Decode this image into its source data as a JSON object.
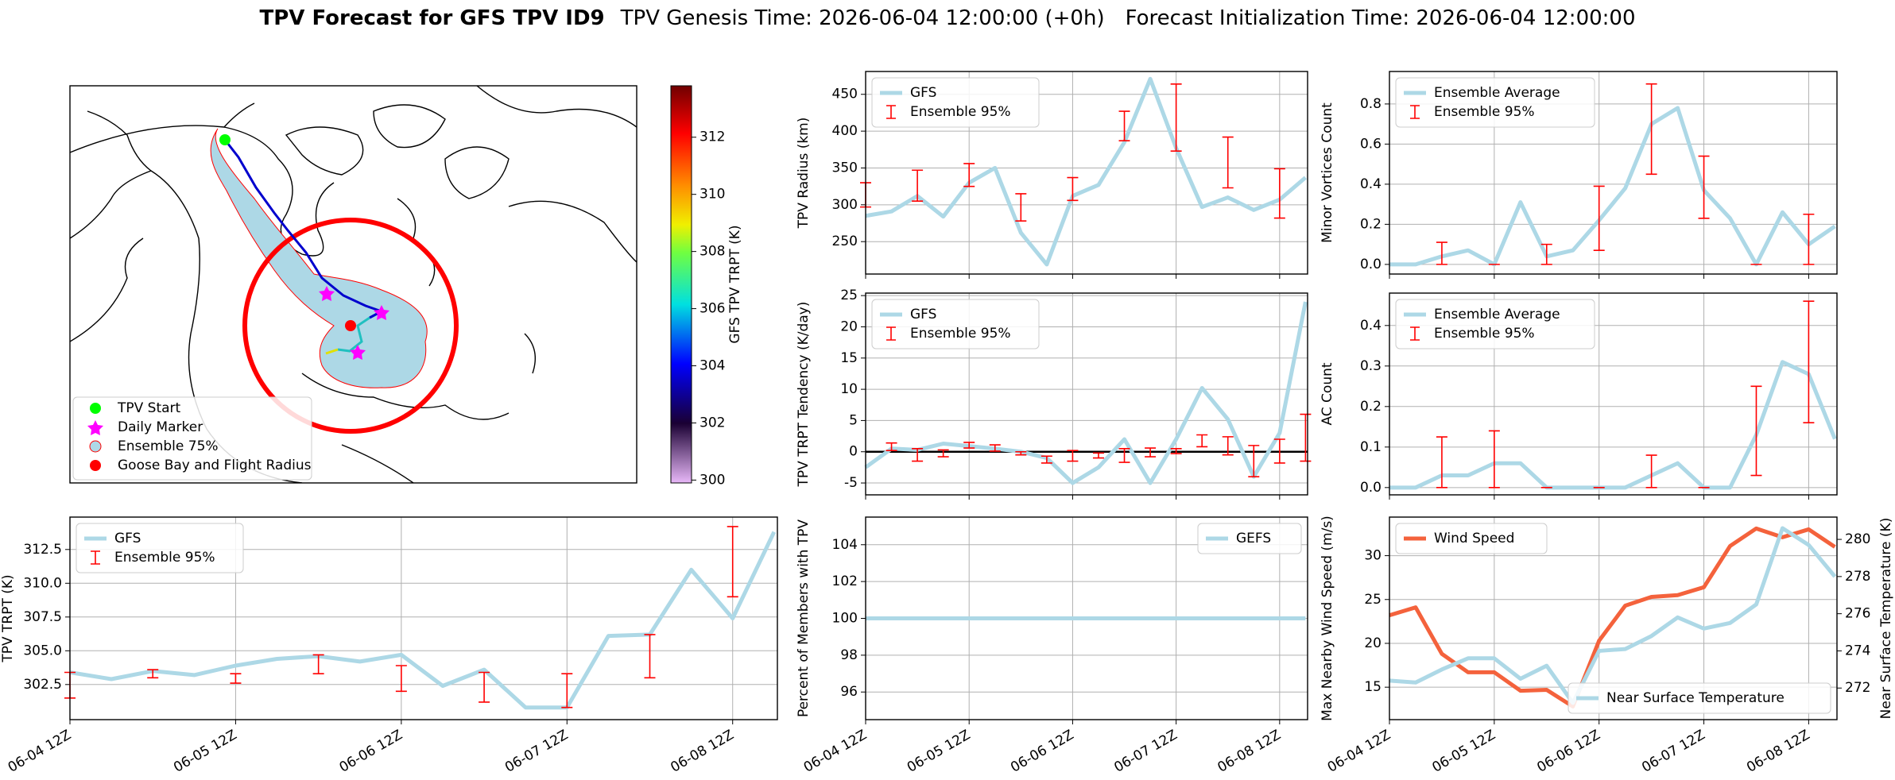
{
  "title": {
    "main": "TPV Forecast for GFS TPV ID9",
    "genesis": "TPV Genesis Time: 2026-06-04 12:00:00 (+0h)",
    "init": "Forecast Initialization Time: 2026-06-04 12:00:00"
  },
  "chart_data": [
    {
      "type": "map",
      "legend": [
        "TPV Start",
        "Daily Marker",
        "Ensemble 75%",
        "Goose Bay and Flight Radius"
      ],
      "colorbar": {
        "label": "GFS TPV TRPT (K)",
        "ylim": [
          299.9,
          313.8
        ],
        "yticks": [
          300,
          302,
          304,
          306,
          308,
          310,
          312
        ]
      }
    },
    {
      "type": "line",
      "ylabel": "TPV TRPT (K)",
      "grid": true,
      "legend": "upper left",
      "x": [
        "06-04 12Z",
        "06-04 18Z",
        "06-05 00Z",
        "06-05 06Z",
        "06-05 12Z",
        "06-05 18Z",
        "06-06 00Z",
        "06-06 06Z",
        "06-06 12Z",
        "06-06 18Z",
        "06-07 00Z",
        "06-07 06Z",
        "06-07 12Z",
        "06-07 18Z",
        "06-08 00Z",
        "06-08 06Z",
        "06-08 12Z",
        "06-08 18Z"
      ],
      "xticks": [
        "06-04 12Z",
        "06-05 12Z",
        "06-06 12Z",
        "06-07 12Z",
        "06-08 12Z"
      ],
      "ylim": [
        299.9,
        314.9
      ],
      "yticks": [
        302.5,
        {
          "value": 305,
          "label": "305.0"
        },
        307.5,
        {
          "value": 310,
          "label": "310.0"
        },
        312.5
      ],
      "series": [
        {
          "name": "GFS",
          "color": "#add8e6",
          "values": [
            303.4,
            302.9,
            303.5,
            303.2,
            303.9,
            304.4,
            304.6,
            304.2,
            304.7,
            302.4,
            303.6,
            300.8,
            300.8,
            306.1,
            306.2,
            311.0,
            307.4,
            313.8
          ]
        },
        {
          "name": "Ensemble 95%",
          "color": "#ff0000",
          "low": [
            301.5,
            null,
            303.0,
            null,
            302.6,
            null,
            303.3,
            null,
            302.0,
            null,
            301.2,
            null,
            300.8,
            null,
            303.0,
            null,
            309.0,
            null
          ],
          "high": [
            303.4,
            null,
            303.6,
            null,
            303.3,
            null,
            304.7,
            null,
            303.9,
            null,
            303.4,
            null,
            303.3,
            null,
            306.2,
            null,
            314.2,
            null
          ]
        }
      ]
    },
    {
      "type": "line",
      "ylabel": "TPV Radius (km)",
      "grid": true,
      "legend": "upper left",
      "x": [
        "06-04 12Z",
        "06-04 18Z",
        "06-05 00Z",
        "06-05 06Z",
        "06-05 12Z",
        "06-05 18Z",
        "06-06 00Z",
        "06-06 06Z",
        "06-06 12Z",
        "06-06 18Z",
        "06-07 00Z",
        "06-07 06Z",
        "06-07 12Z",
        "06-07 18Z",
        "06-08 00Z",
        "06-08 06Z",
        "06-08 12Z",
        "06-08 18Z"
      ],
      "xticks": [
        "06-04 12Z",
        "06-05 12Z",
        "06-06 12Z",
        "06-07 12Z",
        "06-08 12Z"
      ],
      "ylim": [
        206,
        481
      ],
      "yticks": [
        250,
        300,
        350,
        400,
        450
      ],
      "series": [
        {
          "name": "GFS",
          "color": "#add8e6",
          "values": [
            285,
            291,
            312,
            284,
            330,
            350,
            262,
            219,
            312,
            327,
            385,
            471,
            377,
            297,
            310,
            293,
            307,
            337
          ]
        },
        {
          "name": "Ensemble 95%",
          "color": "#ff0000",
          "low": [
            297,
            null,
            305,
            null,
            325,
            null,
            278,
            null,
            306,
            null,
            387,
            null,
            373,
            null,
            323,
            null,
            282,
            null
          ],
          "high": [
            330,
            null,
            347,
            null,
            356,
            null,
            315,
            null,
            337,
            null,
            427,
            null,
            464,
            null,
            392,
            null,
            349,
            null
          ]
        }
      ]
    },
    {
      "type": "line",
      "ylabel": "TPV TRPT Tendency (K/day)",
      "grid": true,
      "legend": "upper left",
      "hline": 0,
      "x": [
        "06-04 12Z",
        "06-04 18Z",
        "06-05 00Z",
        "06-05 06Z",
        "06-05 12Z",
        "06-05 18Z",
        "06-06 00Z",
        "06-06 06Z",
        "06-06 12Z",
        "06-06 18Z",
        "06-07 00Z",
        "06-07 06Z",
        "06-07 12Z",
        "06-07 18Z",
        "06-08 00Z",
        "06-08 06Z",
        "06-08 12Z",
        "06-08 18Z"
      ],
      "xticks": [
        "06-04 12Z",
        "06-05 12Z",
        "06-06 12Z",
        "06-07 12Z",
        "06-08 12Z"
      ],
      "ylim": [
        -6.9,
        25.4
      ],
      "yticks": [
        -5,
        0,
        5,
        10,
        15,
        20,
        25
      ],
      "series": [
        {
          "name": "GFS",
          "color": "#add8e6",
          "values": [
            -2.5,
            0.5,
            0.3,
            1.3,
            0.9,
            0.5,
            0,
            -1,
            -5,
            -2.5,
            2,
            -5,
            2,
            10.2,
            5.2,
            -4,
            3,
            24
          ]
        },
        {
          "name": "Ensemble 95%",
          "color": "#ff0000",
          "low": [
            null,
            0.2,
            -1.5,
            -0.8,
            0.6,
            0.1,
            -0.5,
            -1.8,
            -1.5,
            -1,
            -1.7,
            -0.8,
            -0.3,
            0.8,
            -0.5,
            -4,
            -1.8,
            -1.5
          ],
          "high": [
            null,
            1.4,
            0.5,
            0.3,
            1.5,
            1.1,
            0,
            -0.7,
            0.2,
            -0.2,
            0.5,
            0.6,
            0.5,
            2.7,
            2.4,
            1,
            2,
            6
          ]
        }
      ]
    },
    {
      "type": "line",
      "ylabel": "Percent of Members with TPV",
      "grid": true,
      "legend": "upper right",
      "x": [
        "06-04 12Z",
        "06-04 18Z",
        "06-05 00Z",
        "06-05 06Z",
        "06-05 12Z",
        "06-05 18Z",
        "06-06 00Z",
        "06-06 06Z",
        "06-06 12Z",
        "06-06 18Z",
        "06-07 00Z",
        "06-07 06Z",
        "06-07 12Z",
        "06-07 18Z",
        "06-08 00Z",
        "06-08 06Z",
        "06-08 12Z",
        "06-08 18Z"
      ],
      "xticks": [
        "06-04 12Z",
        "06-05 12Z",
        "06-06 12Z",
        "06-07 12Z",
        "06-08 12Z"
      ],
      "ylim": [
        94.5,
        105.5
      ],
      "yticks": [
        96,
        98,
        100,
        102,
        104
      ],
      "series": [
        {
          "name": "GEFS",
          "color": "#add8e6",
          "values": [
            100,
            100,
            100,
            100,
            100,
            100,
            100,
            100,
            100,
            100,
            100,
            100,
            100,
            100,
            100,
            100,
            100,
            100
          ]
        }
      ]
    },
    {
      "type": "line",
      "ylabel": "Minor Vortices Count",
      "grid": true,
      "legend": "upper left",
      "x": [
        "06-04 12Z",
        "06-04 18Z",
        "06-05 00Z",
        "06-05 06Z",
        "06-05 12Z",
        "06-05 18Z",
        "06-06 00Z",
        "06-06 06Z",
        "06-06 12Z",
        "06-06 18Z",
        "06-07 00Z",
        "06-07 06Z",
        "06-07 12Z",
        "06-07 18Z",
        "06-08 00Z",
        "06-08 06Z",
        "06-08 12Z",
        "06-08 18Z"
      ],
      "xticks": [
        "06-04 12Z",
        "06-05 12Z",
        "06-06 12Z",
        "06-07 12Z",
        "06-08 12Z"
      ],
      "ylim": [
        -0.048,
        0.962
      ],
      "yticks": [
        {
          "value": 0,
          "label": "0.0"
        },
        0.2,
        0.4,
        0.6,
        0.8
      ],
      "series": [
        {
          "name": "Ensemble Average",
          "color": "#add8e6",
          "values": [
            0,
            0,
            0.04,
            0.07,
            0,
            0.31,
            0.04,
            0.07,
            0.22,
            0.38,
            0.7,
            0.78,
            0.37,
            0.23,
            0,
            0.26,
            0.1,
            0.19
          ]
        },
        {
          "name": "Ensemble 95%",
          "color": "#ff0000",
          "low": [
            null,
            null,
            0,
            null,
            0,
            null,
            0,
            null,
            0.07,
            null,
            0.45,
            null,
            0.23,
            null,
            0,
            null,
            0,
            null
          ],
          "high": [
            null,
            null,
            0.11,
            null,
            0,
            null,
            0.1,
            null,
            0.39,
            null,
            0.9,
            null,
            0.54,
            null,
            0,
            null,
            0.25,
            null
          ]
        }
      ]
    },
    {
      "type": "line",
      "ylabel": "AC Count",
      "grid": true,
      "legend": "upper left",
      "x": [
        "06-04 12Z",
        "06-04 18Z",
        "06-05 00Z",
        "06-05 06Z",
        "06-05 12Z",
        "06-05 18Z",
        "06-06 00Z",
        "06-06 06Z",
        "06-06 12Z",
        "06-06 18Z",
        "06-07 00Z",
        "06-07 06Z",
        "06-07 12Z",
        "06-07 18Z",
        "06-08 00Z",
        "06-08 06Z",
        "06-08 12Z",
        "06-08 18Z"
      ],
      "xticks": [
        "06-04 12Z",
        "06-05 12Z",
        "06-06 12Z",
        "06-07 12Z",
        "06-08 12Z"
      ],
      "ylim": [
        -0.018,
        0.48
      ],
      "yticks": [
        {
          "value": 0,
          "label": "0.0"
        },
        0.1,
        0.2,
        0.3,
        0.4
      ],
      "series": [
        {
          "name": "Ensemble Average",
          "color": "#add8e6",
          "values": [
            0,
            0,
            0.03,
            0.03,
            0.06,
            0.06,
            0,
            0,
            0,
            0,
            0.03,
            0.06,
            0,
            0,
            0.13,
            0.31,
            0.28,
            0.12
          ]
        },
        {
          "name": "Ensemble 95%",
          "color": "#ff0000",
          "low": [
            null,
            null,
            0,
            null,
            0,
            null,
            0,
            null,
            0,
            null,
            0,
            null,
            0,
            null,
            0.03,
            null,
            0.16,
            null
          ],
          "high": [
            null,
            null,
            0.125,
            null,
            0.14,
            null,
            0,
            null,
            0,
            null,
            0.08,
            null,
            0,
            null,
            0.25,
            null,
            0.46,
            null
          ]
        }
      ]
    },
    {
      "type": "line",
      "ylabel": "Max Nearby Wind Speed (m/s)",
      "y2label": "Near Surface Temperature (K)",
      "grid": true,
      "legend": "upper left",
      "legend2": "lower right",
      "x": [
        "06-04 12Z",
        "06-04 18Z",
        "06-05 00Z",
        "06-05 06Z",
        "06-05 12Z",
        "06-05 18Z",
        "06-06 00Z",
        "06-06 06Z",
        "06-06 12Z",
        "06-06 18Z",
        "06-07 00Z",
        "06-07 06Z",
        "06-07 12Z",
        "06-07 18Z",
        "06-08 00Z",
        "06-08 06Z",
        "06-08 12Z",
        "06-08 18Z"
      ],
      "xticks": [
        "06-04 12Z",
        "06-05 12Z",
        "06-06 12Z",
        "06-07 12Z",
        "06-08 12Z"
      ],
      "ylim": [
        11.3,
        34.4
      ],
      "yticks": [
        15,
        20,
        25,
        30
      ],
      "y2lim": [
        270.3,
        281.2
      ],
      "y2ticks": [
        272,
        274,
        276,
        278,
        280
      ],
      "series": [
        {
          "name": "Wind Speed",
          "color": "#f4623c",
          "values": [
            23.2,
            24.1,
            18.8,
            16.7,
            16.7,
            14.6,
            14.7,
            12.8,
            20.3,
            24.3,
            25.3,
            25.5,
            26.4,
            31.1,
            33.1,
            32.1,
            33.0,
            31.0
          ]
        },
        {
          "name": "Near Surface Temperature",
          "color": "#add8e6",
          "axis": "y2",
          "y2color": "#4169e1",
          "values": [
            272.4,
            272.3,
            273.0,
            273.6,
            273.6,
            272.5,
            273.2,
            271.2,
            274.0,
            274.1,
            274.8,
            275.8,
            275.2,
            275.5,
            276.5,
            280.6,
            279.7,
            278.0
          ]
        }
      ]
    }
  ]
}
